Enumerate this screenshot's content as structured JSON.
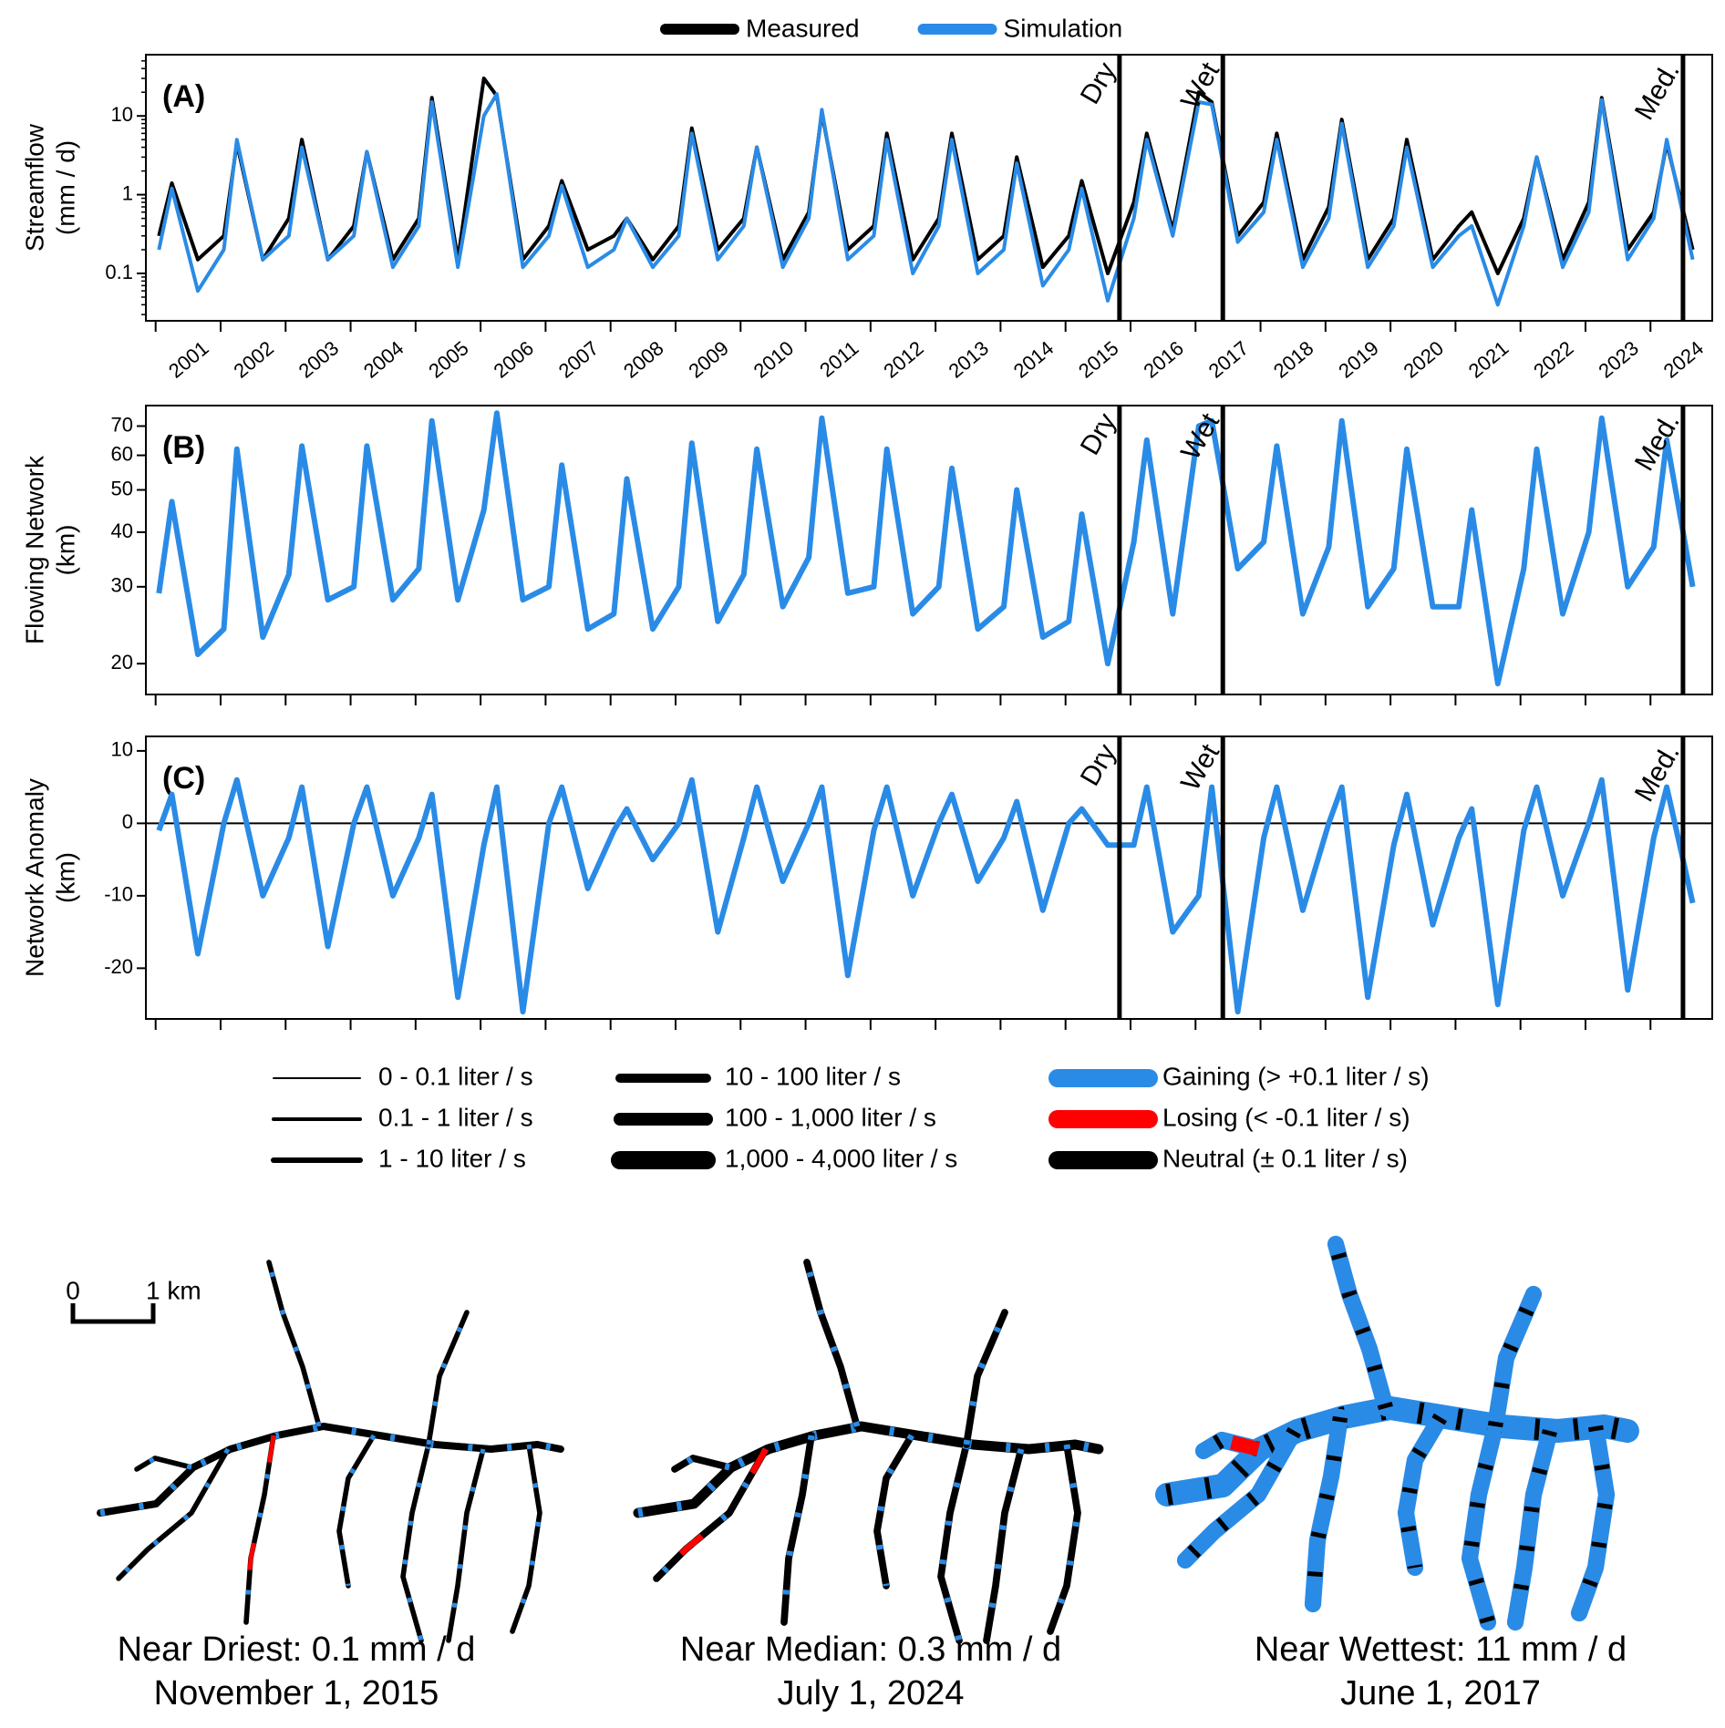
{
  "chart_data": [
    {
      "type": "line",
      "panel_label": "(A)",
      "ylabel": [
        "Streamflow",
        "(mm / d)"
      ],
      "log_y": true,
      "xlim": [
        2000.85,
        2024.95
      ],
      "ylim": [
        0.025,
        60
      ],
      "yticks": [
        0.1,
        1,
        10
      ],
      "xticks": [
        2001,
        2002,
        2003,
        2004,
        2005,
        2006,
        2007,
        2008,
        2009,
        2010,
        2011,
        2012,
        2013,
        2014,
        2015,
        2016,
        2017,
        2018,
        2019,
        2020,
        2021,
        2022,
        2023,
        2024
      ],
      "events": [
        {
          "label": "Dry",
          "x": 2015.83
        },
        {
          "label": "Wet",
          "x": 2017.42
        },
        {
          "label": "Med.",
          "x": 2024.5
        }
      ],
      "x": [
        2001.05,
        2001.25,
        2001.65,
        2002.05,
        2002.25,
        2002.65,
        2003.05,
        2003.25,
        2003.65,
        2004.05,
        2004.25,
        2004.65,
        2005.05,
        2005.25,
        2005.65,
        2006.05,
        2006.25,
        2006.65,
        2007.05,
        2007.25,
        2007.65,
        2008.05,
        2008.25,
        2008.65,
        2009.05,
        2009.25,
        2009.65,
        2010.05,
        2010.25,
        2010.65,
        2011.05,
        2011.25,
        2011.65,
        2012.05,
        2012.25,
        2012.65,
        2013.05,
        2013.25,
        2013.65,
        2014.05,
        2014.25,
        2014.65,
        2015.05,
        2015.25,
        2015.65,
        2016.05,
        2016.25,
        2016.65,
        2017.05,
        2017.25,
        2017.65,
        2018.05,
        2018.25,
        2018.65,
        2019.05,
        2019.25,
        2019.65,
        2020.05,
        2020.25,
        2020.65,
        2021.05,
        2021.25,
        2021.65,
        2022.05,
        2022.25,
        2022.65,
        2023.05,
        2023.25,
        2023.65,
        2024.05,
        2024.25,
        2024.65
      ],
      "series": [
        {
          "name": "Measured",
          "color": "#000000",
          "values": [
            0.3,
            1.4,
            0.15,
            0.3,
            4.5,
            0.15,
            0.5,
            5,
            0.15,
            0.4,
            3.5,
            0.15,
            0.5,
            17,
            0.15,
            30,
            18,
            0.15,
            0.4,
            1.5,
            0.2,
            0.3,
            0.5,
            0.15,
            0.4,
            7,
            0.2,
            0.5,
            4,
            0.15,
            0.6,
            11,
            0.2,
            0.4,
            6,
            0.15,
            0.5,
            6,
            0.15,
            0.3,
            3,
            0.12,
            0.3,
            1.5,
            0.1,
            0.8,
            6,
            0.35,
            20,
            15,
            0.3,
            0.8,
            6,
            0.15,
            0.7,
            9,
            0.15,
            0.5,
            5,
            0.15,
            0.4,
            0.6,
            0.1,
            0.5,
            3,
            0.15,
            0.8,
            17,
            0.2,
            0.6,
            4.5,
            0.2
          ]
        },
        {
          "name": "Simulation",
          "color": "#2a8be6",
          "values": [
            0.2,
            1.2,
            0.06,
            0.2,
            5,
            0.15,
            0.3,
            4,
            0.15,
            0.3,
            3.5,
            0.12,
            0.4,
            15,
            0.12,
            10,
            19,
            0.12,
            0.3,
            1.3,
            0.12,
            0.2,
            0.5,
            0.12,
            0.3,
            6,
            0.15,
            0.4,
            4,
            0.12,
            0.5,
            12,
            0.15,
            0.3,
            5,
            0.1,
            0.4,
            5,
            0.1,
            0.2,
            2.5,
            0.07,
            0.2,
            1.2,
            0.045,
            0.5,
            5,
            0.3,
            15,
            14,
            0.25,
            0.6,
            5,
            0.12,
            0.5,
            8,
            0.12,
            0.4,
            4,
            0.12,
            0.3,
            0.4,
            0.04,
            0.4,
            3,
            0.12,
            0.6,
            16,
            0.15,
            0.5,
            5,
            0.15
          ]
        }
      ]
    },
    {
      "type": "line",
      "panel_label": "(B)",
      "ylabel": [
        "Flowing Network",
        "(km)"
      ],
      "log_y": true,
      "xlim": [
        2000.85,
        2024.95
      ],
      "ylim": [
        17,
        78
      ],
      "yticks": [
        20,
        30,
        40,
        50,
        60,
        70
      ],
      "events": [
        {
          "label": "Dry",
          "x": 2015.83
        },
        {
          "label": "Wet",
          "x": 2017.42
        },
        {
          "label": "Med.",
          "x": 2024.5
        }
      ],
      "x": [
        2001.05,
        2001.25,
        2001.65,
        2002.05,
        2002.25,
        2002.65,
        2003.05,
        2003.25,
        2003.65,
        2004.05,
        2004.25,
        2004.65,
        2005.05,
        2005.25,
        2005.65,
        2006.05,
        2006.25,
        2006.65,
        2007.05,
        2007.25,
        2007.65,
        2008.05,
        2008.25,
        2008.65,
        2009.05,
        2009.25,
        2009.65,
        2010.05,
        2010.25,
        2010.65,
        2011.05,
        2011.25,
        2011.65,
        2012.05,
        2012.25,
        2012.65,
        2013.05,
        2013.25,
        2013.65,
        2014.05,
        2014.25,
        2014.65,
        2015.05,
        2015.25,
        2015.65,
        2016.05,
        2016.25,
        2016.65,
        2017.05,
        2017.25,
        2017.65,
        2018.05,
        2018.25,
        2018.65,
        2019.05,
        2019.25,
        2019.65,
        2020.05,
        2020.25,
        2020.65,
        2021.05,
        2021.25,
        2021.65,
        2022.05,
        2022.25,
        2022.65,
        2023.05,
        2023.25,
        2023.65,
        2024.05,
        2024.25,
        2024.65
      ],
      "series": [
        {
          "color": "#2a8be6",
          "values": [
            29,
            47,
            21,
            24,
            62,
            23,
            32,
            63,
            28,
            30,
            63,
            28,
            33,
            72,
            28,
            45,
            75,
            28,
            30,
            57,
            24,
            26,
            53,
            24,
            30,
            64,
            25,
            32,
            62,
            27,
            35,
            73,
            29,
            30,
            62,
            26,
            30,
            56,
            24,
            27,
            50,
            23,
            25,
            44,
            20,
            38,
            65,
            26,
            70,
            72,
            33,
            38,
            63,
            26,
            37,
            72,
            27,
            33,
            62,
            27,
            27,
            45,
            18,
            33,
            62,
            26,
            40,
            73,
            30,
            37,
            65,
            30
          ]
        }
      ]
    },
    {
      "type": "line",
      "panel_label": "(C)",
      "ylabel": [
        "Network Anomaly",
        "(km)"
      ],
      "log_y": false,
      "zero_line": true,
      "xlim": [
        2000.85,
        2024.95
      ],
      "ylim": [
        -27,
        12
      ],
      "yticks": [
        10,
        0,
        -10,
        -20
      ],
      "events": [
        {
          "label": "Dry",
          "x": 2015.83
        },
        {
          "label": "Wet",
          "x": 2017.42
        },
        {
          "label": "Med.",
          "x": 2024.5
        }
      ],
      "x": [
        2001.05,
        2001.25,
        2001.65,
        2002.05,
        2002.25,
        2002.65,
        2003.05,
        2003.25,
        2003.65,
        2004.05,
        2004.25,
        2004.65,
        2005.05,
        2005.25,
        2005.65,
        2006.05,
        2006.25,
        2006.65,
        2007.05,
        2007.25,
        2007.65,
        2008.05,
        2008.25,
        2008.65,
        2009.05,
        2009.25,
        2009.65,
        2010.05,
        2010.25,
        2010.65,
        2011.05,
        2011.25,
        2011.65,
        2012.05,
        2012.25,
        2012.65,
        2013.05,
        2013.25,
        2013.65,
        2014.05,
        2014.25,
        2014.65,
        2015.05,
        2015.25,
        2015.65,
        2016.05,
        2016.25,
        2016.65,
        2017.05,
        2017.25,
        2017.65,
        2018.05,
        2018.25,
        2018.65,
        2019.05,
        2019.25,
        2019.65,
        2020.05,
        2020.25,
        2020.65,
        2021.05,
        2021.25,
        2021.65,
        2022.05,
        2022.25,
        2022.65,
        2023.05,
        2023.25,
        2023.65,
        2024.05,
        2024.25,
        2024.65
      ],
      "series": [
        {
          "color": "#2a8be6",
          "values": [
            -1,
            4,
            -18,
            0,
            6,
            -10,
            -2,
            5,
            -17,
            0,
            5,
            -10,
            -2,
            4,
            -24,
            -3,
            5,
            -26,
            0,
            5,
            -9,
            -1,
            2,
            -5,
            0,
            6,
            -15,
            -2,
            5,
            -8,
            0,
            5,
            -21,
            -1,
            5,
            -10,
            0,
            4,
            -8,
            -2,
            3,
            -12,
            0,
            2,
            -3,
            -3,
            5,
            -15,
            -10,
            5,
            -26,
            -2,
            5,
            -12,
            0,
            5,
            -24,
            -3,
            4,
            -14,
            -2,
            2,
            -25,
            -1,
            5,
            -10,
            0,
            6,
            -23,
            -2,
            5,
            -11
          ]
        }
      ]
    }
  ],
  "map_legend": {
    "flow_classes": [
      {
        "label": "0 - 0.1 liter / s",
        "width": 2
      },
      {
        "label": "0.1 - 1 liter / s",
        "width": 4
      },
      {
        "label": "1 - 10 liter / s",
        "width": 6
      },
      {
        "label": "10 - 100 liter / s",
        "width": 10
      },
      {
        "label": "100 - 1,000 liter / s",
        "width": 14
      },
      {
        "label": "1,000 - 4,000 liter / s",
        "width": 20
      }
    ],
    "change_classes": [
      {
        "label": "Gaining (> +0.1 liter / s)",
        "color": "#2a8be6"
      },
      {
        "label": "Losing (< -0.1 liter / s)",
        "color": "#ff0000"
      },
      {
        "label": "Neutral (± 0.1 liter / s)",
        "color": "#000000"
      }
    ]
  },
  "scale_bar": {
    "start": "0",
    "end": "1 km"
  },
  "maps": [
    {
      "title": "Near Driest: 0.1 mm / d",
      "date": "November 1, 2015"
    },
    {
      "title": "Near Median: 0.3 mm / d",
      "date": "July 1, 2024"
    },
    {
      "title": "Near Wettest: 11 mm / d",
      "date": "June 1, 2017"
    }
  ]
}
